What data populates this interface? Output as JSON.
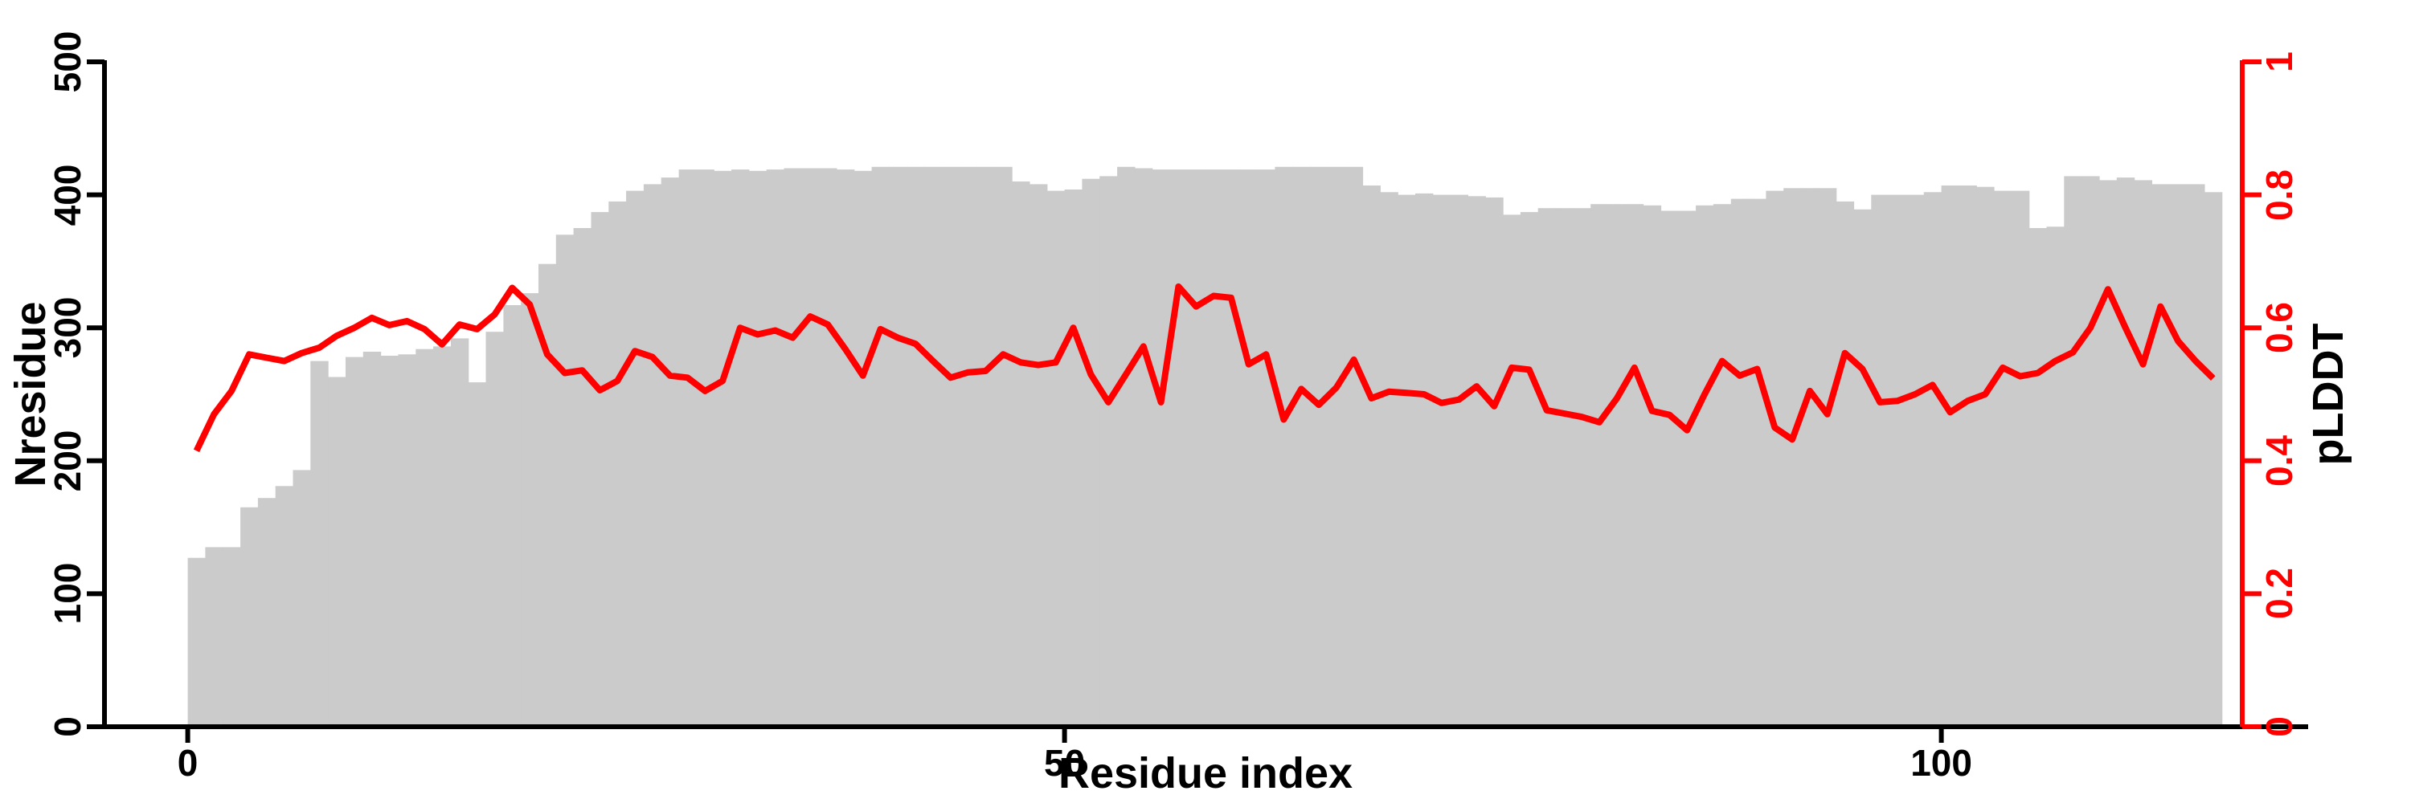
{
  "chart_data": {
    "type": "bar",
    "title": "",
    "xlabel": "Residue index",
    "ylabel_left": "Nresidue",
    "ylabel_right": "pLDDT",
    "x_ticks": [
      0,
      50,
      100
    ],
    "y_left_ticks": [
      0,
      100,
      200,
      300,
      400,
      500
    ],
    "y_right_tick_labels": [
      "0",
      "0.2",
      "0.4",
      "0.6",
      "0.8",
      "1"
    ],
    "y_right_ticks": [
      0,
      0.2,
      0.4,
      0.6,
      0.8,
      1
    ],
    "y_left_range": [
      0,
      500
    ],
    "y_right_range": [
      0,
      1
    ],
    "n_residues": 116,
    "bar_color": "#cbcbcb",
    "line_color": "#ff0000",
    "left_axis_color": "#000000",
    "right_axis_color": "#ff0000",
    "legend": "none",
    "grid": false,
    "series": [
      {
        "name": "Nresidue",
        "axis": "left",
        "style": "bar",
        "values": [
          127,
          135,
          135,
          165,
          172,
          181,
          193,
          275,
          263,
          278,
          282,
          279,
          280,
          284,
          286,
          292,
          259,
          297,
          317,
          326,
          348,
          370,
          375,
          387,
          395,
          403,
          408,
          413,
          419,
          419,
          418,
          419,
          418,
          419,
          420,
          420,
          420,
          419,
          418,
          421,
          421,
          421,
          421,
          421,
          421,
          421,
          421,
          410,
          408,
          403,
          404,
          412,
          414,
          421,
          420,
          419,
          419,
          419,
          419,
          419,
          419,
          419,
          421,
          421,
          421,
          421,
          421,
          407,
          402,
          400,
          401,
          400,
          400,
          399,
          398,
          385,
          387,
          390,
          390,
          390,
          393,
          393,
          393,
          392,
          388,
          388,
          392,
          393,
          397,
          397,
          403,
          405,
          405,
          405,
          395,
          389,
          400,
          400,
          400,
          402,
          407,
          407,
          406,
          403,
          403,
          375,
          376,
          414,
          414,
          411,
          413,
          411,
          408,
          408,
          408,
          402
        ]
      },
      {
        "name": "pLDDT",
        "axis": "right",
        "style": "line",
        "values": [
          0.415,
          0.47,
          0.505,
          0.56,
          0.555,
          0.55,
          0.562,
          0.57,
          0.588,
          0.6,
          0.615,
          0.604,
          0.61,
          0.598,
          0.575,
          0.605,
          0.598,
          0.62,
          0.66,
          0.635,
          0.56,
          0.532,
          0.536,
          0.506,
          0.52,
          0.565,
          0.556,
          0.528,
          0.525,
          0.505,
          0.52,
          0.6,
          0.59,
          0.596,
          0.585,
          0.617,
          0.605,
          0.568,
          0.528,
          0.598,
          0.585,
          0.576,
          0.55,
          0.525,
          0.533,
          0.535,
          0.56,
          0.548,
          0.544,
          0.548,
          0.6,
          0.53,
          0.488,
          0.53,
          0.572,
          0.488,
          0.662,
          0.632,
          0.648,
          0.645,
          0.545,
          0.56,
          0.462,
          0.508,
          0.484,
          0.51,
          0.552,
          0.494,
          0.504,
          0.502,
          0.5,
          0.487,
          0.492,
          0.512,
          0.482,
          0.54,
          0.537,
          0.476,
          0.471,
          0.466,
          0.458,
          0.494,
          0.54,
          0.475,
          0.469,
          0.446,
          0.5,
          0.55,
          0.528,
          0.538,
          0.45,
          0.432,
          0.505,
          0.47,
          0.562,
          0.538,
          0.488,
          0.49,
          0.5,
          0.514,
          0.473,
          0.49,
          0.5,
          0.54,
          0.527,
          0.532,
          0.55,
          0.563,
          0.6,
          0.658,
          0.6,
          0.545,
          0.632,
          0.58,
          0.55,
          0.524
        ]
      }
    ]
  },
  "labels": {
    "left_axis_title": "Nresidue",
    "right_axis_title": "pLDDT",
    "x_axis_title": "Residue index"
  }
}
